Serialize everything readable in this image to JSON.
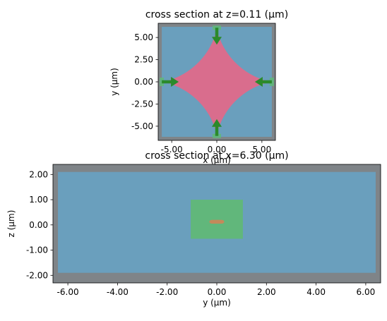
{
  "colors": {
    "pml": "#7f8488",
    "medium": "#6a9fbd",
    "source": "#61b77b",
    "structure": "#d96d8d",
    "arrow": "#2b8a2b",
    "monitor": "#c48a5a"
  },
  "chart_data": [
    {
      "type": "heatmap",
      "title": "cross section at z=0.11 (μm)",
      "xlabel": "x (μm)",
      "ylabel": "y (μm)",
      "xlim": [
        -6.5,
        6.5
      ],
      "ylim": [
        -6.6,
        6.6
      ],
      "xticks": [
        -5.0,
        0.0,
        5.0
      ],
      "xtick_labels": [
        "-5.00",
        "0.00",
        "5.00"
      ],
      "yticks": [
        5.0,
        2.5,
        0.0,
        -2.5,
        -5.0
      ],
      "ytick_labels": [
        "5.00",
        "2.50",
        "0.00",
        "-2.50",
        "-5.00"
      ],
      "regions": [
        {
          "name": "simulation-domain",
          "x": [
            -6.5,
            6.5
          ],
          "y": [
            -6.6,
            6.6
          ]
        },
        {
          "name": "medium",
          "x": [
            -6.1,
            6.1
          ],
          "y": [
            -6.2,
            6.2
          ]
        }
      ],
      "structure": {
        "name": "star-structure",
        "arm_length": 5.0,
        "center_radius": 1.2
      },
      "sources": [
        {
          "name": "top-source",
          "x": 0.0,
          "y": 6.1,
          "direction": "down"
        },
        {
          "name": "bottom-source",
          "x": 0.0,
          "y": -6.1,
          "direction": "up"
        },
        {
          "name": "left-source",
          "x": -6.1,
          "y": 0.0,
          "direction": "right"
        },
        {
          "name": "right-source",
          "x": 6.1,
          "y": 0.0,
          "direction": "left"
        }
      ]
    },
    {
      "type": "heatmap",
      "title": "cross section at x=6.30 (μm)",
      "xlabel": "y (μm)",
      "ylabel": "z (μm)",
      "xlim": [
        -6.6,
        6.6
      ],
      "ylim": [
        -2.3,
        2.4
      ],
      "xticks": [
        -6.0,
        -4.0,
        -2.0,
        0.0,
        2.0,
        4.0,
        6.0
      ],
      "xtick_labels": [
        "-6.00",
        "-4.00",
        "-2.00",
        "0.00",
        "2.00",
        "4.00",
        "6.00"
      ],
      "yticks": [
        2.0,
        1.0,
        0.0,
        -1.0,
        -2.0
      ],
      "ytick_labels": [
        "2.00",
        "1.00",
        "0.00",
        "-1.00",
        "-2.00"
      ],
      "regions": [
        {
          "name": "simulation-domain",
          "x": [
            -6.6,
            6.6
          ],
          "y": [
            -2.3,
            2.4
          ]
        },
        {
          "name": "medium",
          "x": [
            -6.4,
            6.4
          ],
          "y": [
            -1.9,
            2.1
          ]
        },
        {
          "name": "source-plane",
          "x": [
            -1.05,
            1.05
          ],
          "y": [
            -0.55,
            1.0
          ]
        },
        {
          "name": "structure-slab",
          "x": [
            -0.3,
            0.3
          ],
          "y": [
            0.05,
            0.2
          ]
        }
      ]
    }
  ]
}
